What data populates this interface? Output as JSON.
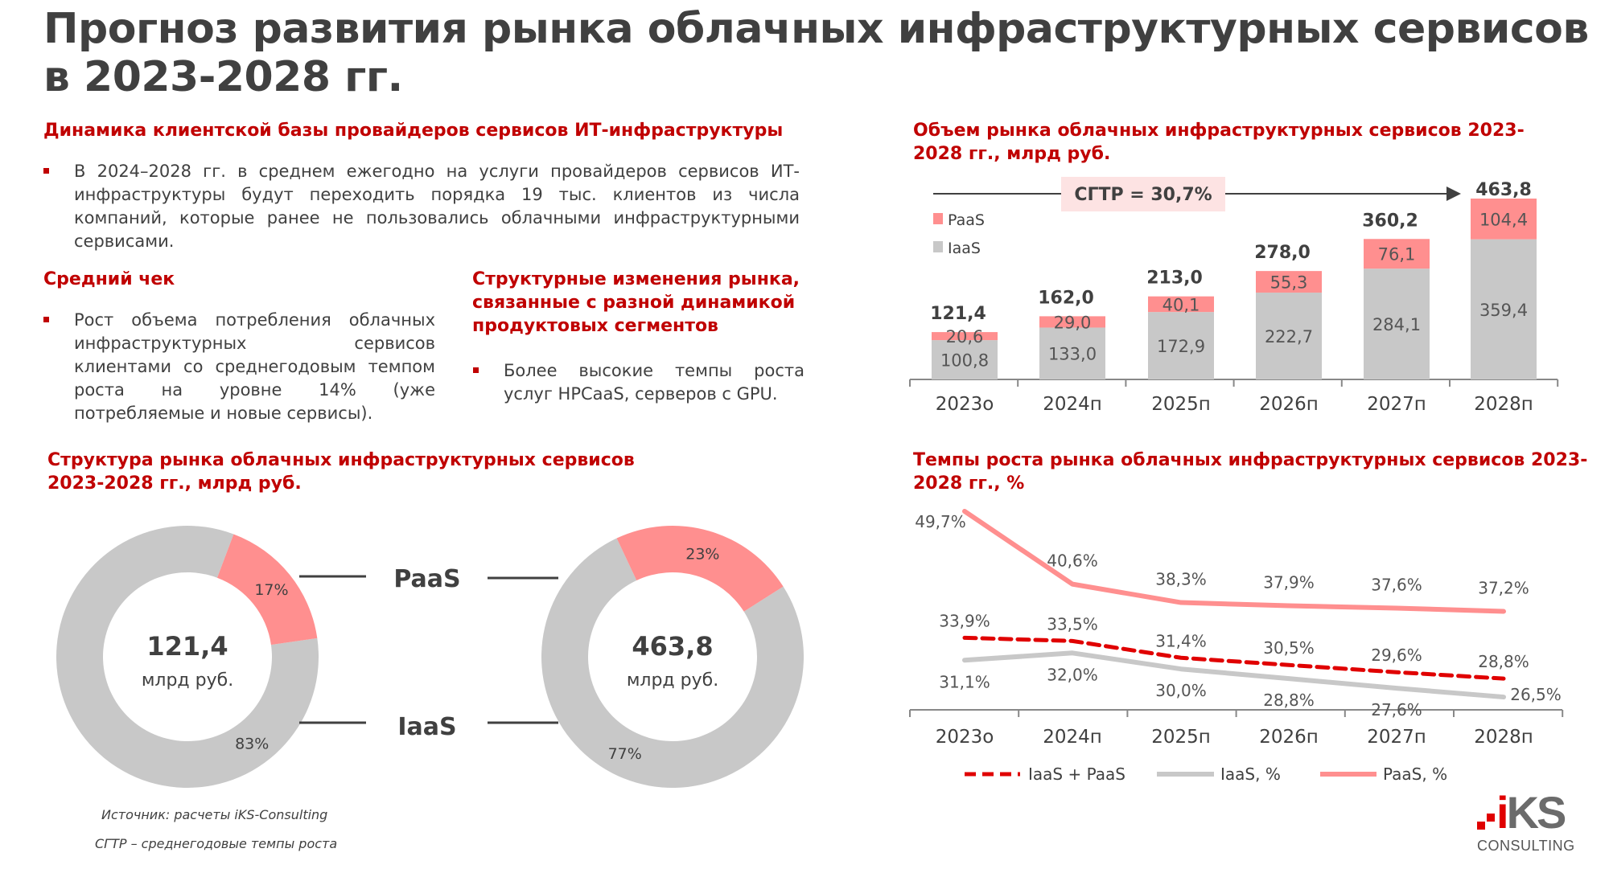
{
  "title_line1": "Прогноз развития рынка облачных инфраструктурных сервисов",
  "title_line2": "в 2023-2028 гг.",
  "section1": {
    "heading": "Динамика клиентской базы провайдеров сервисов ИТ-инфраструктуры",
    "bullet": "В 2024–2028 гг. в среднем ежегодно на услуги провайдеров сервисов ИТ-инфраструктуры будут переходить порядка 19 тыс. клиентов из числа компаний, которые ранее не пользовались облачными инфраструктурными сервисами."
  },
  "section2": {
    "heading": "Средний чек",
    "bullet": "Рост объема потребления облачных инфраструктурных сервисов клиентами со среднегодовым темпом роста на уровне 14% (уже потребляемые и новые сервисы)."
  },
  "section3": {
    "heading": "Структурные изменения рынка, связанные с разной динамикой продуктовых сегментов",
    "bullet": "Более высокие темпы роста услуг HPCaaS, серверов с GPU."
  },
  "source": "Источник: расчеты iKS-Consulting",
  "note": "СГТР – среднегодовые темпы роста",
  "logo": {
    "top": "iKS",
    "bottom": "CONSULTING"
  },
  "colors": {
    "red": "#c00000",
    "paas": "#ff8f8f",
    "iaas": "#c8c8c8",
    "text": "#404040"
  },
  "chart_data": [
    {
      "type": "bar",
      "stacked": true,
      "title": "Объем рынка облачных  инфраструктурных сервисов 2023-2028 гг., млрд руб.",
      "categories": [
        "2023о",
        "2024п",
        "2025п",
        "2026п",
        "2027п",
        "2028п"
      ],
      "series": [
        {
          "name": "IaaS",
          "values": [
            100.8,
            133.0,
            172.9,
            222.7,
            284.1,
            359.4
          ],
          "labels": [
            "100,8",
            "133,0",
            "172,9",
            "222,7",
            "284,1",
            "359,4"
          ]
        },
        {
          "name": "PaaS",
          "values": [
            20.6,
            29.0,
            40.1,
            55.3,
            76.1,
            104.4
          ],
          "labels": [
            "20,6",
            "29,0",
            "40,1",
            "55,3",
            "76,1",
            "104,4"
          ]
        }
      ],
      "totals": [
        121.4,
        162.0,
        213.0,
        278.0,
        360.2,
        463.8
      ],
      "total_labels": [
        "121,4",
        "162,0",
        "213,0",
        "278,0",
        "360,2",
        "463,8"
      ],
      "annotation": "СГТР = 30,7%",
      "legend": [
        "PaaS",
        "IaaS"
      ],
      "legend_position": "top-left",
      "ylim": [
        0,
        463.8
      ]
    },
    {
      "type": "line",
      "title": "Темпы роста рынка облачных инфраструктурных сервисов 2023-2028 гг., %",
      "categories": [
        "2023о",
        "2024п",
        "2025п",
        "2026п",
        "2027п",
        "2028п"
      ],
      "series": [
        {
          "name": "IaaS + PaaS",
          "values": [
            33.9,
            33.5,
            31.4,
            30.5,
            29.6,
            28.8
          ],
          "labels": [
            "33,9%",
            "33,5%",
            "31,4%",
            "30,5%",
            "29,6%",
            "28,8%"
          ]
        },
        {
          "name": "IaaS, %",
          "values": [
            31.1,
            32.0,
            30.0,
            28.8,
            27.6,
            26.5
          ],
          "labels": [
            "31,1%",
            "32,0%",
            "30,0%",
            "28,8%",
            "27,6%",
            "26,5%"
          ]
        },
        {
          "name": "PaaS, %",
          "values": [
            49.7,
            40.6,
            38.3,
            37.9,
            37.6,
            37.2
          ],
          "labels": [
            "49,7%",
            "40,6%",
            "38,3%",
            "37,9%",
            "37,6%",
            "37,2%"
          ]
        }
      ],
      "legend_position": "bottom"
    },
    {
      "type": "pie",
      "donut": true,
      "title": "Структура рынка облачных инфраструктурных сервисов 2023-2028 гг., млрд руб.",
      "charts": [
        {
          "year": "2023",
          "center_value": "121,4",
          "center_unit": "млрд руб.",
          "slices": [
            {
              "name": "PaaS",
              "value": 17,
              "label": "17%"
            },
            {
              "name": "IaaS",
              "value": 83,
              "label": "83%"
            }
          ]
        },
        {
          "year": "2028",
          "center_value": "463,8",
          "center_unit": "млрд руб.",
          "slices": [
            {
              "name": "PaaS",
              "value": 23,
              "label": "23%"
            },
            {
              "name": "IaaS",
              "value": 77,
              "label": "77%"
            }
          ]
        }
      ],
      "legend": [
        "PaaS",
        "IaaS"
      ]
    }
  ]
}
